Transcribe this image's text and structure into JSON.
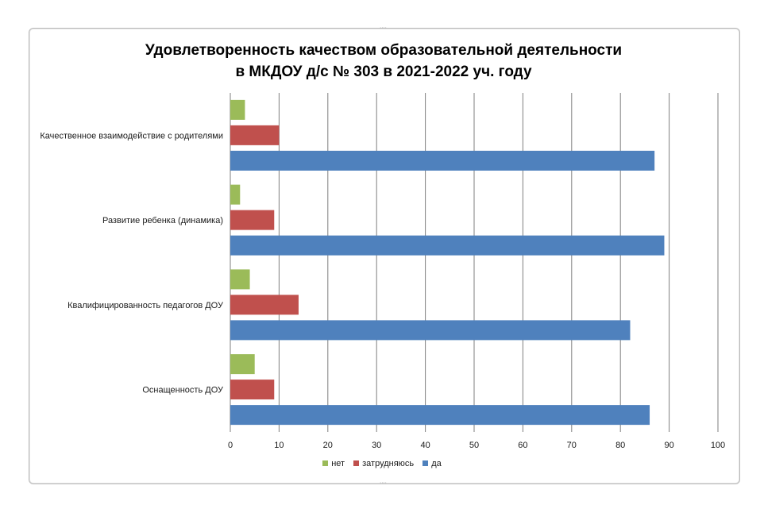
{
  "chart_data": {
    "type": "bar",
    "orientation": "horizontal",
    "title": "Удовлетворенность качеством образовательной деятельности",
    "subtitle": "в МКДОУ д/с № 303 в 2021-2022 уч. году",
    "categories": [
      "Качественное взаимодействие с родителями",
      "Развитие ребенка (динамика)",
      "Квалифицированность педагогов ДОУ",
      "Оснащенность ДОУ"
    ],
    "series": [
      {
        "name": "нет",
        "color": "#9BBB59",
        "values": [
          3,
          2,
          4,
          5
        ]
      },
      {
        "name": "затрудняюсь",
        "color": "#C0504D",
        "values": [
          10,
          9,
          14,
          9
        ]
      },
      {
        "name": "да",
        "color": "#4F81BD",
        "values": [
          87,
          89,
          82,
          86
        ]
      }
    ],
    "xlim": [
      0,
      100
    ],
    "xticks": [
      "0",
      "10",
      "20",
      "30",
      "40",
      "50",
      "60",
      "70",
      "80",
      "90",
      "100"
    ],
    "grid": true,
    "legend_position": "bottom"
  }
}
